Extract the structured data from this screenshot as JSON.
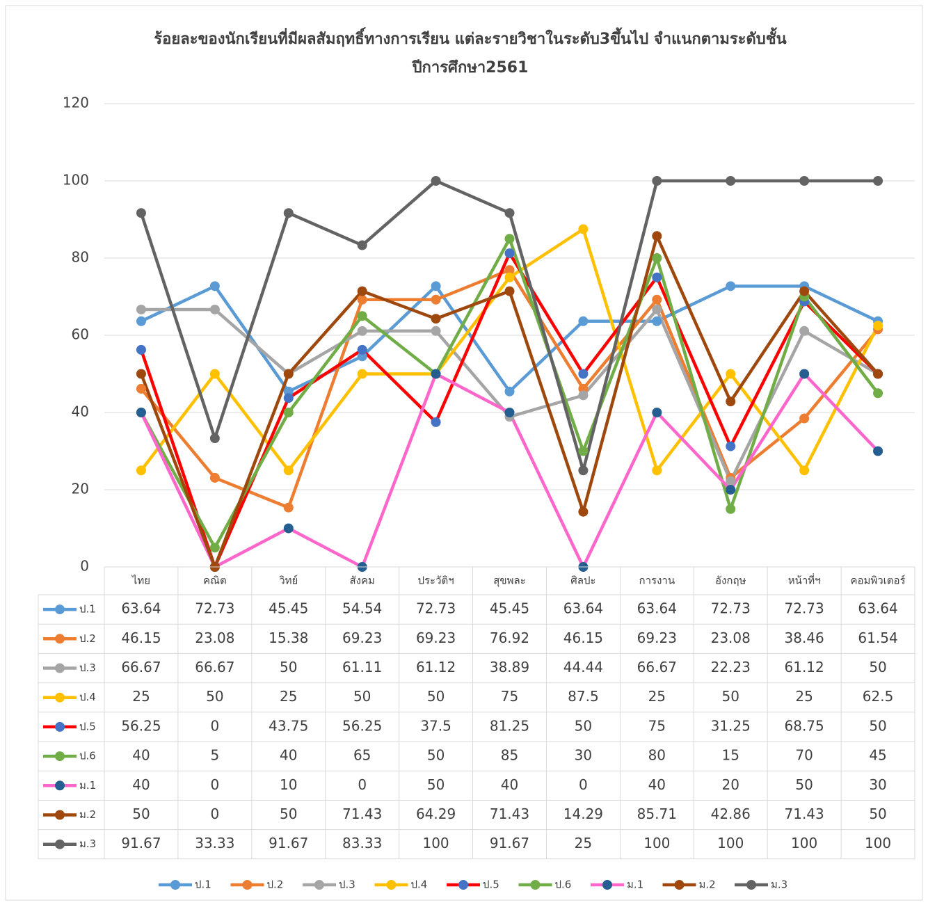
{
  "chart_data": {
    "type": "line",
    "title": [
      "ร้อยละของนักเรียนที่มีผลสัมฤทธิ์ทางการเรียน แต่ละรายวิชาในระดับ3ขึ้นไป จำแนกตามระดับชั้น",
      "ปีการศึกษา2561"
    ],
    "categories": [
      "ไทย",
      "คณิต",
      "วิทย์",
      "สังคม",
      "ประวัติฯ",
      "สุขพละ",
      "ศิลปะ",
      "การงาน",
      "อังกฤษ",
      "หน้าที่ฯ",
      "คอมพิวเตอร์"
    ],
    "ylim": [
      0,
      120
    ],
    "yticks": [
      0,
      20,
      40,
      60,
      80,
      100,
      120
    ],
    "grid": true,
    "legend": "bottom",
    "data_table": true,
    "series": [
      {
        "name": "ป.1",
        "color": "#5b9bd5",
        "marker_color": "#5b9bd5",
        "values": [
          63.64,
          72.73,
          45.45,
          54.54,
          72.73,
          45.45,
          63.64,
          63.64,
          72.73,
          72.73,
          63.64
        ]
      },
      {
        "name": "ป.2",
        "color": "#ed7d31",
        "marker_color": "#ed7d31",
        "values": [
          46.15,
          23.08,
          15.38,
          69.23,
          69.23,
          76.92,
          46.15,
          69.23,
          23.08,
          38.46,
          61.54
        ]
      },
      {
        "name": "ป.3",
        "color": "#a5a5a5",
        "marker_color": "#a5a5a5",
        "values": [
          66.67,
          66.67,
          50,
          61.11,
          61.12,
          38.89,
          44.44,
          66.67,
          22.23,
          61.12,
          50
        ]
      },
      {
        "name": "ป.4",
        "color": "#ffc000",
        "marker_color": "#ffc000",
        "values": [
          25,
          50,
          25,
          50,
          50,
          75,
          87.5,
          25,
          50,
          25,
          62.5
        ]
      },
      {
        "name": "ป.5",
        "color": "#ff0000",
        "marker_color": "#4472c4",
        "values": [
          56.25,
          0,
          43.75,
          56.25,
          37.5,
          81.25,
          50,
          75,
          31.25,
          68.75,
          50
        ]
      },
      {
        "name": "ป.6",
        "color": "#70ad47",
        "marker_color": "#70ad47",
        "values": [
          40,
          5,
          40,
          65,
          50,
          85,
          30,
          80,
          15,
          70,
          45
        ]
      },
      {
        "name": "ม.1",
        "color": "#ff66cc",
        "marker_color": "#255e91",
        "values": [
          40,
          0,
          10,
          0,
          50,
          40,
          0,
          40,
          20,
          50,
          30
        ]
      },
      {
        "name": "ม.2",
        "color": "#9e480e",
        "marker_color": "#9e480e",
        "values": [
          50,
          0,
          50,
          71.43,
          64.29,
          71.43,
          14.29,
          85.71,
          42.86,
          71.43,
          50
        ]
      },
      {
        "name": "ม.3",
        "color": "#636363",
        "marker_color": "#636363",
        "values": [
          91.67,
          33.33,
          91.67,
          83.33,
          100,
          91.67,
          25,
          100,
          100,
          100,
          100
        ]
      }
    ]
  }
}
